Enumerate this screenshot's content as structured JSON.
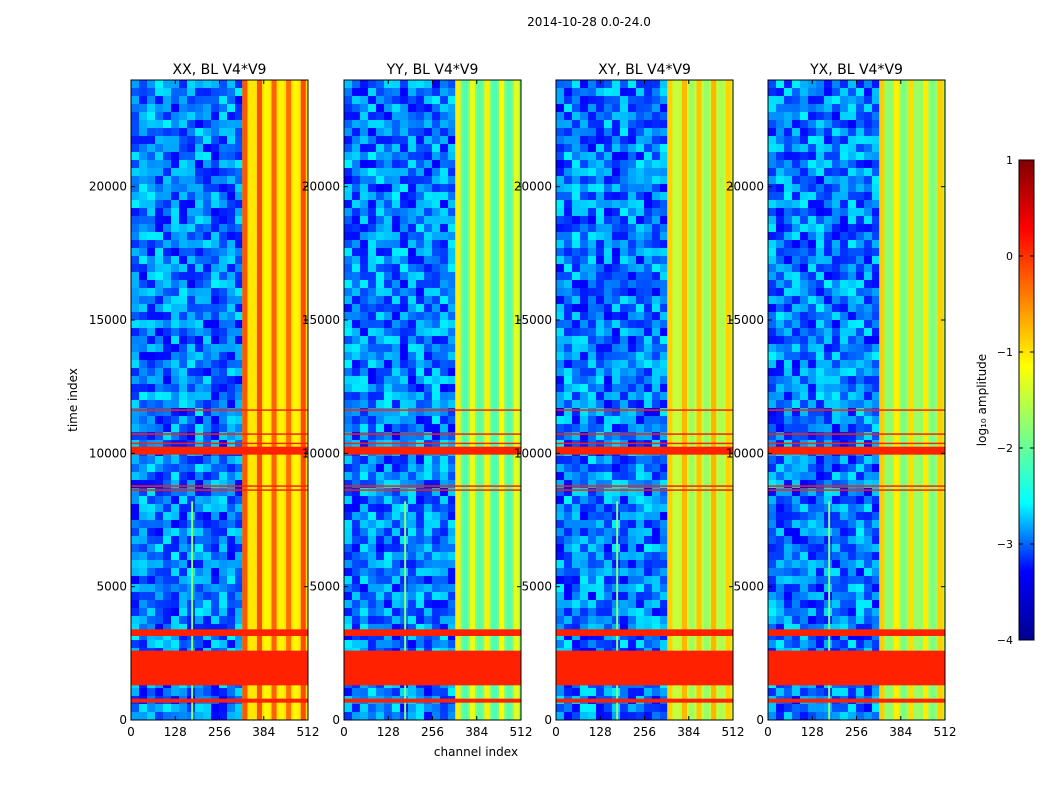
{
  "chart_data": {
    "type": "heatmap",
    "suptitle": "2014-10-28 0.0-24.0",
    "xlabel": "channel index",
    "ylabel": "time index",
    "xlim": [
      0,
      512
    ],
    "ylim": [
      0,
      24000
    ],
    "x_ticks": [
      0,
      128,
      256,
      384,
      512
    ],
    "y_ticks": [
      0,
      5000,
      10000,
      15000,
      20000
    ],
    "colorbar": {
      "label": "log₁₀ amplitude",
      "range": [
        -4,
        1
      ],
      "ticks": [
        "1",
        "0",
        "−1",
        "−2",
        "−3",
        "−4"
      ],
      "colormap": [
        "#00008f",
        "#0000ff",
        "#00ffff",
        "#7fff7f",
        "#ffff00",
        "#ff7f00",
        "#ff0000",
        "#800000"
      ]
    },
    "panels": [
      {
        "title": "XX, BL V4*V9",
        "rfi_band_channels": [
          322,
          512
        ],
        "band_level": -0.6
      },
      {
        "title": "YY, BL V4*V9",
        "rfi_band_channels": [
          322,
          512
        ],
        "band_level": -1.5
      },
      {
        "title": "XY, BL V4*V9",
        "rfi_band_channels": [
          322,
          512
        ],
        "band_level": -1.1
      },
      {
        "title": "YX, BL V4*V9",
        "rfi_band_channels": [
          322,
          512
        ],
        "band_level": -1.3
      }
    ],
    "flagged_time_ranges": [
      [
        8600,
        8650
      ],
      [
        8750,
        8800
      ],
      [
        9950,
        10250
      ],
      [
        10350,
        10400
      ],
      [
        10700,
        10750
      ],
      [
        11600,
        11650
      ],
      [
        1300,
        2600
      ],
      [
        3150,
        3400
      ],
      [
        650,
        800
      ]
    ],
    "flag_level": 0.1
  }
}
